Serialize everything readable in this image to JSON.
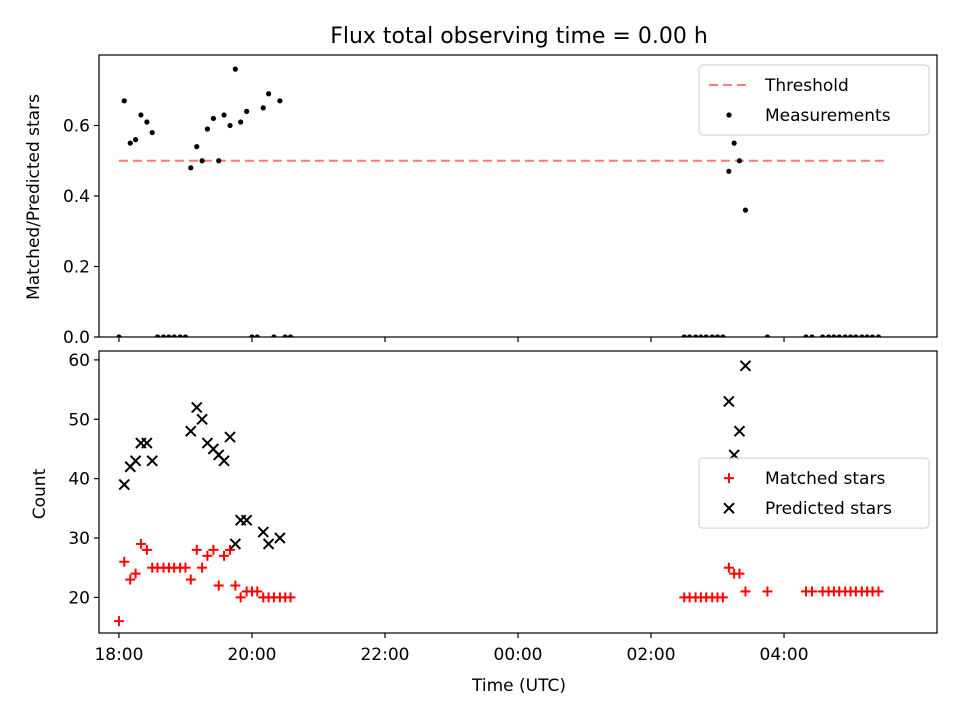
{
  "chart_data": [
    {
      "type": "scatter",
      "title": "Flux total observing time = 0.00 h",
      "xlabel": "",
      "ylabel": "Matched/Predicted stars",
      "x_unit": "hours since 18:00 UTC",
      "xlim": [
        -0.3,
        12.3
      ],
      "ylim": [
        0,
        0.8
      ],
      "yticks": [
        0.0,
        0.2,
        0.4,
        0.6
      ],
      "ytick_labels": [
        "0.0",
        "0.2",
        "0.4",
        "0.6"
      ],
      "legend_position": "top-right",
      "threshold": {
        "name": "Threshold",
        "y": 0.5,
        "x_range": [
          0.0,
          11.55
        ],
        "color": "#ff7777"
      },
      "series": [
        {
          "name": "Measurements",
          "marker": "dot",
          "color": "#000000",
          "points": [
            [
              0.0,
              0.0
            ],
            [
              0.08,
              0.67
            ],
            [
              0.17,
              0.55
            ],
            [
              0.25,
              0.56
            ],
            [
              0.33,
              0.63
            ],
            [
              0.42,
              0.61
            ],
            [
              0.5,
              0.58
            ],
            [
              0.58,
              0.0
            ],
            [
              0.67,
              0.0
            ],
            [
              0.75,
              0.0
            ],
            [
              0.83,
              0.0
            ],
            [
              0.92,
              0.0
            ],
            [
              1.0,
              0.0
            ],
            [
              1.08,
              0.48
            ],
            [
              1.17,
              0.54
            ],
            [
              1.25,
              0.5
            ],
            [
              1.33,
              0.59
            ],
            [
              1.42,
              0.62
            ],
            [
              1.5,
              0.5
            ],
            [
              1.58,
              0.63
            ],
            [
              1.67,
              0.6
            ],
            [
              1.75,
              0.76
            ],
            [
              1.83,
              0.61
            ],
            [
              1.92,
              0.64
            ],
            [
              2.0,
              0.0
            ],
            [
              2.08,
              0.0
            ],
            [
              2.17,
              0.65
            ],
            [
              2.25,
              0.69
            ],
            [
              2.33,
              0.0
            ],
            [
              2.42,
              0.67
            ],
            [
              2.5,
              0.0
            ],
            [
              2.58,
              0.0
            ],
            [
              8.5,
              0.0
            ],
            [
              8.58,
              0.0
            ],
            [
              8.67,
              0.0
            ],
            [
              8.75,
              0.0
            ],
            [
              8.83,
              0.0
            ],
            [
              8.92,
              0.0
            ],
            [
              9.0,
              0.0
            ],
            [
              9.08,
              0.0
            ],
            [
              9.17,
              0.47
            ],
            [
              9.25,
              0.55
            ],
            [
              9.33,
              0.5
            ],
            [
              9.42,
              0.36
            ],
            [
              9.75,
              0.0
            ],
            [
              10.33,
              0.0
            ],
            [
              10.42,
              0.0
            ],
            [
              10.58,
              0.0
            ],
            [
              10.67,
              0.0
            ],
            [
              10.75,
              0.0
            ],
            [
              10.83,
              0.0
            ],
            [
              10.92,
              0.0
            ],
            [
              11.0,
              0.0
            ],
            [
              11.08,
              0.0
            ],
            [
              11.17,
              0.0
            ],
            [
              11.25,
              0.0
            ],
            [
              11.33,
              0.0
            ],
            [
              11.42,
              0.0
            ]
          ]
        }
      ]
    },
    {
      "type": "scatter",
      "title": "",
      "xlabel": "Time (UTC)",
      "ylabel": "Count",
      "x_unit": "hours since 18:00 UTC",
      "xlim": [
        -0.3,
        12.3
      ],
      "ylim": [
        14,
        61.5
      ],
      "yticks": [
        20,
        30,
        40,
        50,
        60
      ],
      "ytick_labels": [
        "20",
        "30",
        "40",
        "50",
        "60"
      ],
      "xticks": [
        0,
        2,
        4,
        6,
        8,
        10
      ],
      "xtick_labels": [
        "18:00",
        "20:00",
        "22:00",
        "00:00",
        "02:00",
        "04:00"
      ],
      "legend_position": "right",
      "series": [
        {
          "name": "Matched stars",
          "marker": "plus",
          "color": "#ff0000",
          "points": [
            [
              0.0,
              16
            ],
            [
              0.08,
              26
            ],
            [
              0.17,
              23
            ],
            [
              0.25,
              24
            ],
            [
              0.33,
              29
            ],
            [
              0.42,
              28
            ],
            [
              0.5,
              25
            ],
            [
              0.58,
              25
            ],
            [
              0.67,
              25
            ],
            [
              0.75,
              25
            ],
            [
              0.83,
              25
            ],
            [
              0.92,
              25
            ],
            [
              1.0,
              25
            ],
            [
              1.08,
              23
            ],
            [
              1.17,
              28
            ],
            [
              1.25,
              25
            ],
            [
              1.33,
              27
            ],
            [
              1.42,
              28
            ],
            [
              1.5,
              22
            ],
            [
              1.58,
              27
            ],
            [
              1.67,
              28
            ],
            [
              1.75,
              22
            ],
            [
              1.83,
              20
            ],
            [
              1.92,
              21
            ],
            [
              2.0,
              21
            ],
            [
              2.08,
              21
            ],
            [
              2.17,
              20
            ],
            [
              2.25,
              20
            ],
            [
              2.33,
              20
            ],
            [
              2.42,
              20
            ],
            [
              2.5,
              20
            ],
            [
              2.58,
              20
            ],
            [
              8.5,
              20
            ],
            [
              8.58,
              20
            ],
            [
              8.67,
              20
            ],
            [
              8.75,
              20
            ],
            [
              8.83,
              20
            ],
            [
              8.92,
              20
            ],
            [
              9.0,
              20
            ],
            [
              9.08,
              20
            ],
            [
              9.17,
              25
            ],
            [
              9.25,
              24
            ],
            [
              9.33,
              24
            ],
            [
              9.42,
              21
            ],
            [
              9.75,
              21
            ],
            [
              10.33,
              21
            ],
            [
              10.42,
              21
            ],
            [
              10.58,
              21
            ],
            [
              10.67,
              21
            ],
            [
              10.75,
              21
            ],
            [
              10.83,
              21
            ],
            [
              10.92,
              21
            ],
            [
              11.0,
              21
            ],
            [
              11.08,
              21
            ],
            [
              11.17,
              21
            ],
            [
              11.25,
              21
            ],
            [
              11.33,
              21
            ],
            [
              11.42,
              21
            ]
          ]
        },
        {
          "name": "Predicted stars",
          "marker": "x",
          "color": "#000000",
          "points": [
            [
              0.08,
              39
            ],
            [
              0.17,
              42
            ],
            [
              0.25,
              43
            ],
            [
              0.33,
              46
            ],
            [
              0.42,
              46
            ],
            [
              0.5,
              43
            ],
            [
              1.08,
              48
            ],
            [
              1.17,
              52
            ],
            [
              1.25,
              50
            ],
            [
              1.33,
              46
            ],
            [
              1.42,
              45
            ],
            [
              1.5,
              44
            ],
            [
              1.58,
              43
            ],
            [
              1.67,
              47
            ],
            [
              1.75,
              29
            ],
            [
              1.83,
              33
            ],
            [
              1.92,
              33
            ],
            [
              2.17,
              31
            ],
            [
              2.25,
              29
            ],
            [
              2.42,
              30
            ],
            [
              9.17,
              53
            ],
            [
              9.25,
              44
            ],
            [
              9.33,
              48
            ],
            [
              9.42,
              59
            ]
          ]
        }
      ]
    }
  ]
}
